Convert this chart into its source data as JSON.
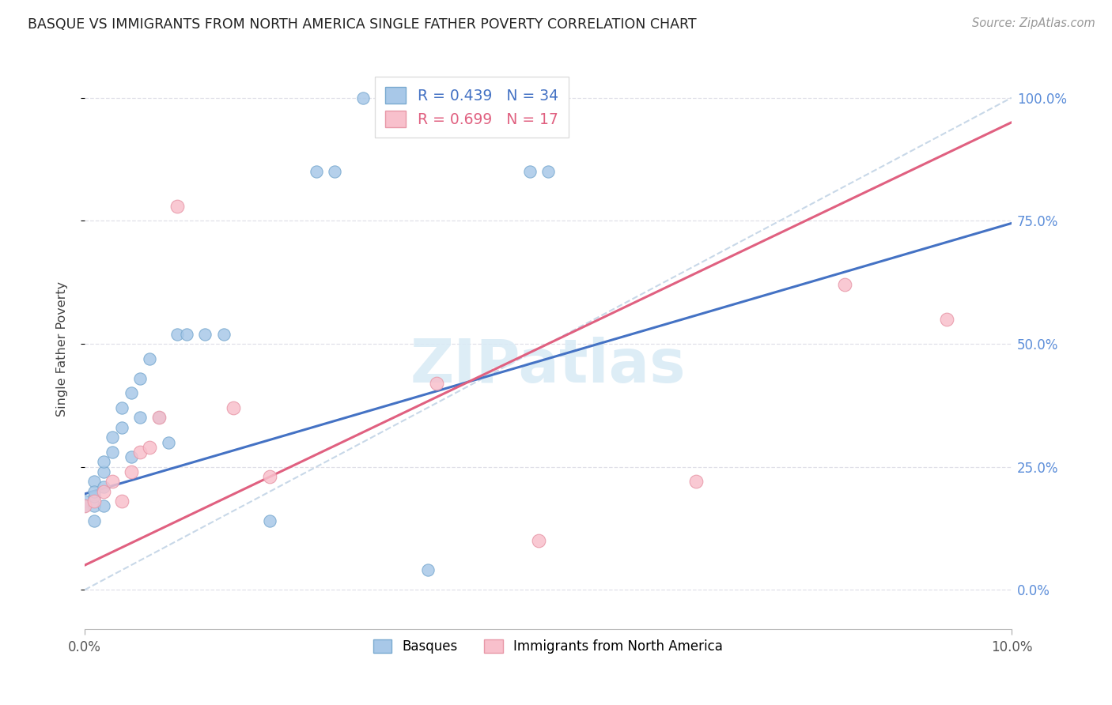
{
  "title": "BASQUE VS IMMIGRANTS FROM NORTH AMERICA SINGLE FATHER POVERTY CORRELATION CHART",
  "source": "Source: ZipAtlas.com",
  "ylabel": "Single Father Poverty",
  "xmin": 0.0,
  "xmax": 0.1,
  "ymin": -0.08,
  "ymax": 1.06,
  "xtick_labels": [
    "0.0%",
    "10.0%"
  ],
  "ytick_vals": [
    0.0,
    0.25,
    0.5,
    0.75,
    1.0
  ],
  "ytick_labels_right": [
    "0.0%",
    "25.0%",
    "50.0%",
    "75.0%",
    "100.0%"
  ],
  "legend1_label": "R = 0.439   N = 34",
  "legend2_label": "R = 0.699   N = 17",
  "blue_face": "#a8c8e8",
  "blue_edge": "#7aaad0",
  "blue_line": "#4472c4",
  "pink_face": "#f8c0cc",
  "pink_edge": "#e898a8",
  "pink_line": "#e06080",
  "diag_color": "#c8d8e8",
  "grid_color": "#e0e0e8",
  "watermark_color": "#d8eaf5",
  "blue_reg_intercept": 0.195,
  "blue_reg_slope": 5.5,
  "pink_reg_intercept": 0.05,
  "pink_reg_slope": 9.0,
  "basque_x": [
    0.0,
    0.0,
    0.001,
    0.001,
    0.001,
    0.001,
    0.001,
    0.002,
    0.002,
    0.002,
    0.002,
    0.003,
    0.003,
    0.004,
    0.004,
    0.005,
    0.005,
    0.006,
    0.006,
    0.007,
    0.008,
    0.009,
    0.01,
    0.011,
    0.013,
    0.015,
    0.02,
    0.025,
    0.027,
    0.03,
    0.033,
    0.037,
    0.048,
    0.05
  ],
  "basque_y": [
    0.18,
    0.17,
    0.14,
    0.17,
    0.19,
    0.22,
    0.2,
    0.17,
    0.21,
    0.24,
    0.26,
    0.28,
    0.31,
    0.33,
    0.37,
    0.4,
    0.27,
    0.43,
    0.35,
    0.47,
    0.35,
    0.3,
    0.52,
    0.52,
    0.52,
    0.52,
    0.14,
    0.85,
    0.85,
    1.0,
    1.0,
    0.04,
    0.85,
    0.85
  ],
  "immigrant_x": [
    0.0,
    0.001,
    0.002,
    0.003,
    0.004,
    0.005,
    0.006,
    0.007,
    0.008,
    0.01,
    0.016,
    0.02,
    0.038,
    0.049,
    0.066,
    0.082,
    0.093
  ],
  "immigrant_y": [
    0.17,
    0.18,
    0.2,
    0.22,
    0.18,
    0.24,
    0.28,
    0.29,
    0.35,
    0.78,
    0.37,
    0.23,
    0.42,
    0.1,
    0.22,
    0.62,
    0.55
  ]
}
